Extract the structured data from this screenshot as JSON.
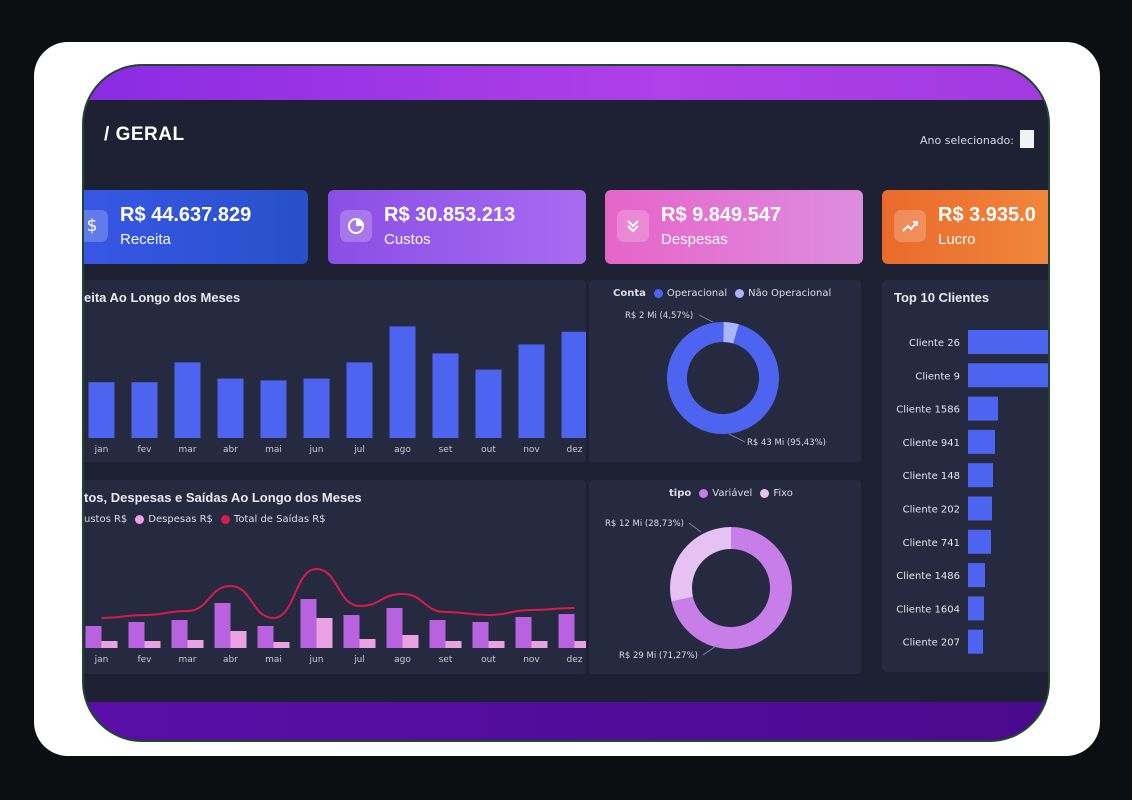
{
  "header": {
    "title": "GERAL",
    "year_label": "Ano selecionado:"
  },
  "kpis": [
    {
      "value": "R$ 44.637.829",
      "label": "Receita",
      "icon": "dollar-icon"
    },
    {
      "value": "R$ 30.853.213",
      "label": "Custos",
      "icon": "pie-chart-icon"
    },
    {
      "value": "R$ 9.849.547",
      "label": "Despesas",
      "icon": "double-chevron-down-icon"
    },
    {
      "value": "R$ 3.935.0",
      "label": "Lucro",
      "icon": "trend-up-icon"
    }
  ],
  "colors": {
    "bar_blue": "#4d64f0",
    "custos": "#b862e0",
    "despesas": "#eba2e2",
    "total": "#d81b4a",
    "operacional": "#4d64f0",
    "nao_operacional": "#aab6ff",
    "variavel": "#c77ee8",
    "fixo": "#e6c2f2"
  },
  "chart_data": [
    {
      "type": "bar",
      "title": "eita Ao Longo dos Meses",
      "categories": [
        "jan",
        "fev",
        "mar",
        "abr",
        "mai",
        "jun",
        "jul",
        "ago",
        "set",
        "out",
        "nov",
        "dez"
      ],
      "values": [
        3.1,
        3.1,
        4.2,
        3.3,
        3.2,
        3.3,
        4.2,
        6.2,
        4.7,
        3.8,
        5.2,
        5.9
      ],
      "ylim": [
        0,
        7
      ]
    },
    {
      "type": "pie",
      "legend_title": "Conta",
      "series": [
        {
          "name": "Operacional",
          "value": 95.43,
          "label": "R$ 43 Mi (95,43%)"
        },
        {
          "name": "Não Operacional",
          "value": 4.57,
          "label": "R$ 2 Mi (4,57%)"
        }
      ]
    },
    {
      "type": "bar",
      "title": "tos, Despesas e Saídas Ao Longo dos Meses",
      "legend": [
        "ustos R$",
        "Despesas R$",
        "Total de Saídas R$"
      ],
      "categories": [
        "jan",
        "fev",
        "mar",
        "abr",
        "mai",
        "jun",
        "jul",
        "ago",
        "set",
        "out",
        "nov",
        "dez"
      ],
      "series": [
        {
          "name": "Custos R$",
          "values": [
            2.2,
            2.6,
            2.8,
            4.5,
            2.2,
            4.9,
            3.3,
            4.0,
            2.8,
            2.6,
            3.1,
            3.4
          ]
        },
        {
          "name": "Despesas R$",
          "values": [
            0.7,
            0.7,
            0.8,
            1.7,
            0.6,
            3.0,
            0.9,
            1.3,
            0.7,
            0.7,
            0.7,
            0.7
          ]
        },
        {
          "name": "Total de Saídas R$",
          "values": [
            3.0,
            3.3,
            3.7,
            6.2,
            3.0,
            7.9,
            4.2,
            5.4,
            3.6,
            3.3,
            3.8,
            4.0
          ]
        }
      ],
      "ylim": [
        0,
        10
      ]
    },
    {
      "type": "pie",
      "legend_title": "tipo",
      "series": [
        {
          "name": "Variável",
          "value": 71.27,
          "label": "R$ 29 Mi (71,27%)"
        },
        {
          "name": "Fixo",
          "value": 28.73,
          "label": "R$ 12 Mi (28,73%)"
        }
      ]
    },
    {
      "type": "bar",
      "title": "Top 10 Clientes",
      "categories": [
        "Cliente 26",
        "Cliente 9",
        "Cliente 1586",
        "Cliente 941",
        "Cliente 148",
        "Cliente 202",
        "Cliente 741",
        "Cliente 1486",
        "Cliente 1604",
        "Cliente 207"
      ],
      "values": [
        100,
        96,
        30,
        27,
        25,
        24,
        23,
        17,
        16,
        15
      ],
      "orientation": "horizontal"
    }
  ]
}
